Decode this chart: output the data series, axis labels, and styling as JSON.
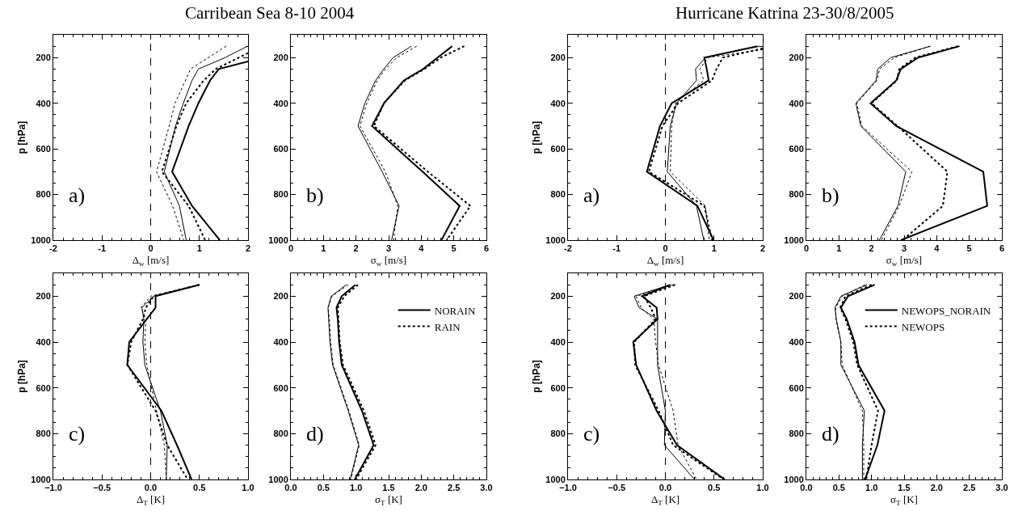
{
  "chart_data": [
    {
      "type": "line",
      "orientation": "horizontal",
      "title": "Carribean Sea 8-10 2004",
      "xlabel": "Δ$_{w}$ [m/s]",
      "ylabel": "p [hPa]",
      "annotations": [
        "a)"
      ],
      "x": [
        150,
        200,
        250,
        300,
        400,
        500,
        700,
        850,
        1000
      ],
      "xlim": [
        -2,
        2
      ],
      "xticks": [
        -2,
        -1,
        0,
        1,
        2
      ],
      "ylim": [
        1000,
        100
      ],
      "yticks": [
        200,
        400,
        600,
        800,
        1000
      ],
      "ref_lines": [
        {
          "axis": "x",
          "value": 0,
          "line_style": "dashed"
        }
      ],
      "series": [
        {
          "color": "#000000",
          "line_style": "solid",
          "x": [
            217,
            250,
            300,
            400,
            500,
            700,
            850,
            1000
          ],
          "values": [
            2.0,
            1.4,
            1.22,
            0.98,
            0.78,
            0.44,
            0.85,
            1.42
          ]
        },
        {
          "color": "#000000",
          "line_style": "dotted",
          "x": [
            180,
            250,
            300,
            400,
            500,
            700,
            850,
            1000
          ],
          "values": [
            2.0,
            1.34,
            1.09,
            0.73,
            0.53,
            0.23,
            0.78,
            1.12
          ]
        },
        {
          "color": "#000000",
          "line_style": "solid",
          "values": [
            1.99,
            1.53,
            0.98,
            0.85,
            0.67,
            0.51,
            0.28,
            0.59,
            0.73
          ]
        },
        {
          "color": "#000000",
          "line_style": "dotted",
          "x": [
            150,
            250,
            400,
            500,
            700,
            850,
            1000
          ],
          "values": [
            1.55,
            0.82,
            0.5,
            0.38,
            0.12,
            0.45,
            0.68
          ]
        }
      ]
    },
    {
      "type": "line",
      "orientation": "horizontal",
      "xlabel": "σ$_{w}$ [m/s]",
      "annotations": [
        "b)"
      ],
      "x": [
        150,
        200,
        250,
        300,
        400,
        500,
        700,
        850,
        1000
      ],
      "xlim": [
        0,
        6
      ],
      "xticks": [
        0,
        1,
        2,
        3,
        4,
        5,
        6
      ],
      "ylim": [
        1000,
        100
      ],
      "yticks": [
        200,
        400,
        600,
        800,
        1000
      ],
      "series": [
        {
          "color": "#000000",
          "line_style": "solid",
          "values": [
            4.95,
            4.5,
            4.06,
            3.47,
            2.86,
            2.49,
            4.04,
            5.18,
            4.62
          ]
        },
        {
          "color": "#000000",
          "line_style": "dotted",
          "values": [
            5.32,
            4.6,
            4.1,
            3.5,
            2.85,
            2.55,
            4.2,
            5.51,
            4.78
          ]
        },
        {
          "color": "#000000",
          "line_style": "solid",
          "values": [
            3.7,
            3.14,
            2.85,
            2.6,
            2.27,
            2.06,
            2.8,
            3.32,
            3.09
          ]
        },
        {
          "color": "#000000",
          "line_style": "dotted",
          "values": [
            3.86,
            3.25,
            2.9,
            2.65,
            2.33,
            2.12,
            2.9,
            3.28,
            3.15
          ]
        }
      ]
    },
    {
      "type": "line",
      "orientation": "horizontal",
      "title": "Hurricane Katrina 23-30/8/2005",
      "xlabel": "Δ$_{w}$ [m/s]",
      "ylabel": "p [hPa]",
      "annotations": [
        "a)"
      ],
      "x": [
        150,
        200,
        250,
        300,
        400,
        500,
        700,
        850,
        1000
      ],
      "xlim": [
        -2,
        2
      ],
      "xticks": [
        -2,
        -1,
        0,
        1,
        2
      ],
      "ylim": [
        1000,
        100
      ],
      "yticks": [
        200,
        400,
        600,
        800,
        1000
      ],
      "ref_lines": [
        {
          "axis": "x",
          "value": 0,
          "line_style": "dashed"
        }
      ],
      "series": [
        {
          "color": "#000000",
          "line_style": "solid",
          "values": [
            1.89,
            0.8,
            0.85,
            0.89,
            0.13,
            -0.11,
            -0.38,
            0.66,
            0.99
          ]
        },
        {
          "color": "#000000",
          "line_style": "dotted",
          "x": [
            160,
            200,
            250,
            300,
            400,
            500,
            700,
            850,
            1000
          ],
          "values": [
            2.0,
            1.18,
            1.05,
            0.96,
            0.26,
            -0.06,
            -0.34,
            0.8,
            0.96
          ]
        },
        {
          "color": "#000000",
          "line_style": "solid",
          "values": [
            1.95,
            0.82,
            0.62,
            0.64,
            0.23,
            0.1,
            0.04,
            0.64,
            0.79
          ]
        },
        {
          "color": "#000000",
          "line_style": "dotted",
          "x": [
            165,
            200,
            250,
            300,
            400,
            500,
            700,
            850,
            1000
          ],
          "values": [
            2.0,
            0.87,
            0.71,
            0.79,
            0.2,
            0.13,
            0.1,
            0.82,
            0.9
          ]
        }
      ]
    },
    {
      "type": "line",
      "orientation": "horizontal",
      "xlabel": "σ$_{w}$ [m/s]",
      "annotations": [
        "b)"
      ],
      "x": [
        150,
        200,
        250,
        300,
        400,
        500,
        700,
        850,
        1000
      ],
      "xlim": [
        0,
        6
      ],
      "xticks": [
        0,
        1,
        2,
        3,
        4,
        5,
        6
      ],
      "ylim": [
        1000,
        100
      ],
      "yticks": [
        200,
        400,
        600,
        800,
        1000
      ],
      "series": [
        {
          "color": "#000000",
          "line_style": "solid",
          "values": [
            4.7,
            3.43,
            2.9,
            2.76,
            1.97,
            2.76,
            5.43,
            5.55,
            2.9
          ]
        },
        {
          "color": "#000000",
          "line_style": "dotted",
          "values": [
            4.65,
            3.35,
            2.85,
            2.78,
            2.0,
            2.8,
            4.33,
            4.19,
            2.95
          ]
        },
        {
          "color": "#000000",
          "line_style": "solid",
          "values": [
            3.81,
            2.59,
            2.19,
            2.14,
            1.52,
            1.67,
            3.05,
            2.81,
            2.24
          ]
        },
        {
          "color": "#000000",
          "line_style": "dotted",
          "values": [
            3.8,
            2.7,
            2.25,
            2.17,
            1.55,
            1.7,
            3.24,
            2.85,
            2.3
          ]
        }
      ]
    },
    {
      "type": "line",
      "orientation": "horizontal",
      "xlabel": "Δ$_{T}$ [K]",
      "ylabel": "p [hPa]",
      "annotations": [
        "c)"
      ],
      "x": [
        150,
        200,
        250,
        300,
        400,
        500,
        700,
        850,
        1000
      ],
      "xlim": [
        -1,
        1
      ],
      "xticks": [
        {
          "value": -1,
          "label": "−1.0"
        },
        {
          "value": -0.5,
          "label": "−0.5"
        },
        {
          "value": 0,
          "label": "0.0"
        },
        0.5,
        {
          "value": 1,
          "label": "1.0"
        }
      ],
      "ylim": [
        1000,
        100
      ],
      "yticks": [
        200,
        400,
        600,
        800,
        1000
      ],
      "ref_lines": [
        {
          "axis": "x",
          "value": 0,
          "line_style": "dashed"
        }
      ],
      "series": [
        {
          "color": "#000000",
          "line_style": "solid",
          "values": [
            0.5,
            0.05,
            0.05,
            -0.04,
            -0.22,
            -0.24,
            0.11,
            0.27,
            0.42
          ]
        },
        {
          "color": "#000000",
          "line_style": "dotted",
          "values": [
            0.5,
            0.03,
            -0.05,
            -0.08,
            -0.2,
            -0.24,
            0.05,
            0.17,
            0.38
          ]
        },
        {
          "color": "#000000",
          "line_style": "solid",
          "values": [
            0.5,
            0.03,
            -0.09,
            -0.07,
            -0.08,
            -0.06,
            0.1,
            0.17,
            0.16
          ]
        },
        {
          "color": "#000000",
          "line_style": "dotted",
          "values": [
            0.5,
            0.0,
            -0.1,
            -0.05,
            -0.06,
            -0.04,
            0.06,
            0.14,
            0.16
          ]
        }
      ]
    },
    {
      "type": "line",
      "orientation": "horizontal",
      "xlabel": "σ$_{T}$ [K]",
      "annotations": [
        "d)"
      ],
      "legend": "top right",
      "x": [
        150,
        200,
        250,
        300,
        400,
        500,
        700,
        850,
        1000
      ],
      "xlim": [
        0,
        3
      ],
      "xticks": [
        {
          "value": 0,
          "label": "0.0"
        },
        0.5,
        {
          "value": 1,
          "label": "1.0"
        },
        1.5,
        {
          "value": 2,
          "label": "2.0"
        },
        2.5,
        {
          "value": 3,
          "label": "3.0"
        }
      ],
      "ylim": [
        1000,
        100
      ],
      "yticks": [
        200,
        400,
        600,
        800,
        1000
      ],
      "series": [
        {
          "name": "NORAIN",
          "color": "#000000",
          "line_style": "solid",
          "values": [
            0.99,
            0.78,
            0.7,
            0.72,
            0.74,
            0.78,
            1.09,
            1.27,
            0.98
          ]
        },
        {
          "name": "RAIN",
          "color": "#000000",
          "line_style": "dotted",
          "values": [
            1.03,
            0.82,
            0.72,
            0.73,
            0.75,
            0.8,
            1.12,
            1.3,
            1.0
          ]
        },
        {
          "color": "#000000",
          "line_style": "solid",
          "values": [
            0.85,
            0.62,
            0.57,
            0.58,
            0.6,
            0.64,
            0.88,
            1.04,
            0.91
          ]
        },
        {
          "color": "#000000",
          "line_style": "dotted",
          "values": [
            0.88,
            0.63,
            0.57,
            0.59,
            0.61,
            0.65,
            0.89,
            1.05,
            0.92
          ]
        }
      ]
    },
    {
      "type": "line",
      "orientation": "horizontal",
      "xlabel": "Δ$_{T}$ [K]",
      "ylabel": "p [hPa]",
      "annotations": [
        "c)"
      ],
      "x": [
        150,
        200,
        250,
        300,
        400,
        500,
        700,
        850,
        1000
      ],
      "xlim": [
        -1,
        1
      ],
      "xticks": [
        {
          "value": -1,
          "label": "−1.0"
        },
        {
          "value": -0.5,
          "label": "−0.5"
        },
        {
          "value": 0,
          "label": "0.0"
        },
        0.5,
        {
          "value": 1,
          "label": "1.0"
        }
      ],
      "ylim": [
        1000,
        100
      ],
      "yticks": [
        200,
        400,
        600,
        800,
        1000
      ],
      "ref_lines": [
        {
          "axis": "x",
          "value": 0,
          "line_style": "dashed"
        }
      ],
      "series": [
        {
          "color": "#000000",
          "line_style": "solid",
          "values": [
            0.05,
            -0.24,
            -0.09,
            -0.08,
            -0.33,
            -0.3,
            -0.09,
            0.12,
            0.61
          ]
        },
        {
          "color": "#000000",
          "line_style": "dotted",
          "values": [
            0.1,
            -0.22,
            -0.15,
            -0.1,
            -0.32,
            -0.31,
            -0.07,
            0.08,
            0.6
          ]
        },
        {
          "color": "#000000",
          "line_style": "solid",
          "values": [
            0.05,
            -0.32,
            -0.27,
            -0.08,
            -0.08,
            -0.08,
            0.0,
            -0.01,
            0.3
          ]
        },
        {
          "color": "#000000",
          "line_style": "dotted",
          "values": [
            0.08,
            -0.3,
            -0.25,
            -0.12,
            -0.1,
            -0.07,
            0.08,
            0.13,
            0.32
          ]
        }
      ]
    },
    {
      "type": "line",
      "orientation": "horizontal",
      "xlabel": "σ$_{T}$ [K]",
      "annotations": [
        "d)"
      ],
      "legend": "top right",
      "x": [
        150,
        200,
        250,
        300,
        400,
        500,
        700,
        850,
        1000
      ],
      "xlim": [
        0,
        3
      ],
      "xticks": [
        {
          "value": 0,
          "label": "0.0"
        },
        0.5,
        {
          "value": 1,
          "label": "1.0"
        },
        1.5,
        {
          "value": 2,
          "label": "2.0"
        },
        2.5,
        {
          "value": 3,
          "label": "3.0"
        }
      ],
      "ylim": [
        1000,
        100
      ],
      "yticks": [
        200,
        400,
        600,
        800,
        1000
      ],
      "series": [
        {
          "name": "NEWOPS_NORAIN",
          "color": "#000000",
          "line_style": "solid",
          "values": [
            1.05,
            0.64,
            0.53,
            0.62,
            0.74,
            0.8,
            1.2,
            1.09,
            0.9
          ]
        },
        {
          "name": "NEWOPS",
          "color": "#000000",
          "line_style": "dotted",
          "values": [
            1.0,
            0.6,
            0.52,
            0.6,
            0.72,
            0.78,
            1.1,
            1.0,
            0.92
          ]
        },
        {
          "color": "#000000",
          "line_style": "solid",
          "values": [
            0.93,
            0.53,
            0.44,
            0.46,
            0.53,
            0.53,
            0.89,
            0.86,
            0.86
          ]
        },
        {
          "color": "#000000",
          "line_style": "dotted",
          "values": [
            0.9,
            0.55,
            0.45,
            0.45,
            0.53,
            0.55,
            0.86,
            0.88,
            0.88
          ]
        }
      ]
    }
  ]
}
